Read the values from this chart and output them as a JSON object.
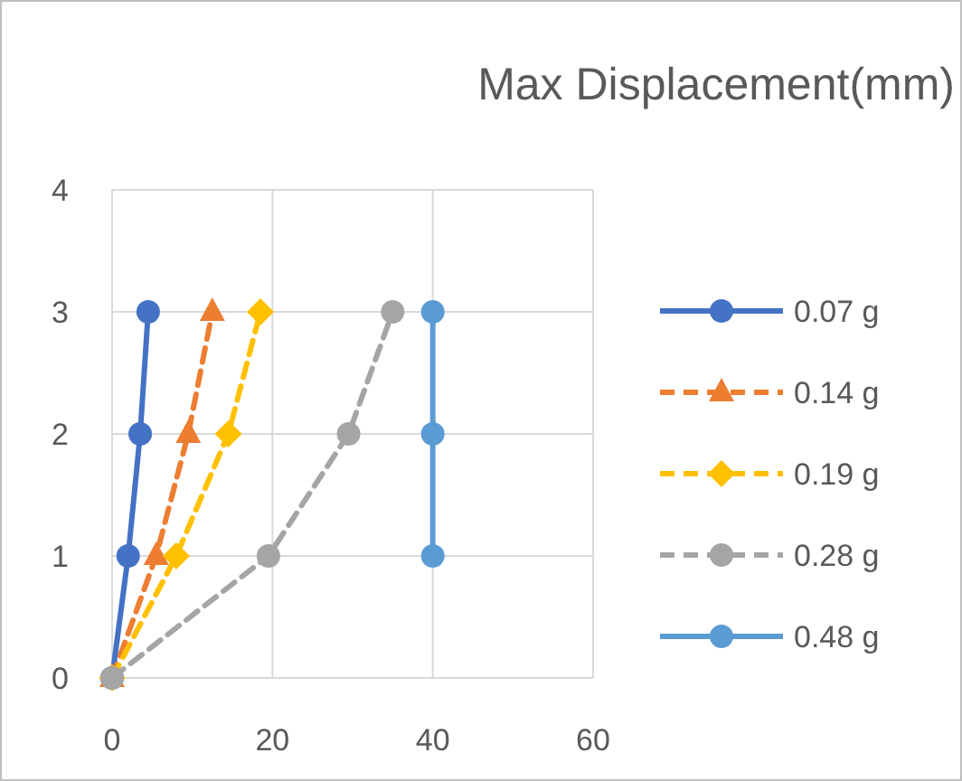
{
  "chart_data": {
    "type": "line",
    "title": "Max Displacement(mm)",
    "xlim": [
      0,
      60
    ],
    "xticks": [
      0,
      20,
      40,
      60
    ],
    "ylim": [
      0,
      4
    ],
    "yticks": [
      0,
      1,
      2,
      3,
      4
    ],
    "grid": true,
    "legend": "right",
    "series": [
      {
        "name": "0.07 g",
        "color": "#4472c4",
        "marker": "circle",
        "line_style": "solid",
        "x": [
          0,
          2,
          3.5,
          4.5
        ],
        "values": [
          0,
          1,
          2,
          3
        ]
      },
      {
        "name": "0.14 g",
        "color": "#ed7d31",
        "marker": "triangle",
        "line_style": "dashed",
        "x": [
          0,
          5.5,
          9.5,
          12.5
        ],
        "values": [
          0,
          1,
          2,
          3
        ]
      },
      {
        "name": "0.19 g",
        "color": "#ffc000",
        "marker": "diamond",
        "line_style": "dashed",
        "x": [
          0,
          8,
          14.5,
          18.5
        ],
        "values": [
          0,
          1,
          2,
          3
        ]
      },
      {
        "name": "0.28 g",
        "color": "#a5a5a5",
        "marker": "circle",
        "line_style": "dashed",
        "x": [
          0,
          19.5,
          29.5,
          35
        ],
        "values": [
          0,
          1,
          2,
          3
        ]
      },
      {
        "name": "0.48 g",
        "color": "#5b9bd5",
        "marker": "circle",
        "line_style": "solid",
        "x": [
          40,
          40,
          40
        ],
        "values": [
          1,
          2,
          3
        ]
      }
    ]
  }
}
